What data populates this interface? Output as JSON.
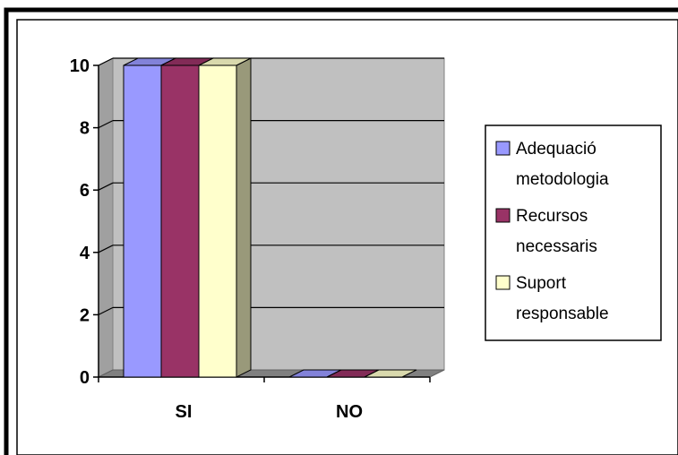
{
  "chart_data": {
    "type": "bar",
    "style": "3d-clustered-column",
    "categories": [
      "SI",
      "NO"
    ],
    "series": [
      {
        "name": "Adequació metodologia",
        "values": [
          10,
          0
        ],
        "color": "#9999ff",
        "legend_lines": [
          "Adequació",
          "metodologia"
        ]
      },
      {
        "name": "Recursos necessaris",
        "values": [
          10,
          0
        ],
        "color": "#993366",
        "legend_lines": [
          "Recursos",
          "necessaris"
        ]
      },
      {
        "name": "Suport responsable",
        "values": [
          10,
          0
        ],
        "color": "#ffffcc",
        "legend_lines": [
          "Suport",
          "responsable"
        ]
      }
    ],
    "ylim": [
      0,
      10
    ],
    "yticks": [
      "0",
      "2",
      "4",
      "6",
      "8",
      "10"
    ],
    "grid": true,
    "legend_position": "right",
    "wall_color": "#c0c0c0",
    "floor_color": "#808080"
  }
}
